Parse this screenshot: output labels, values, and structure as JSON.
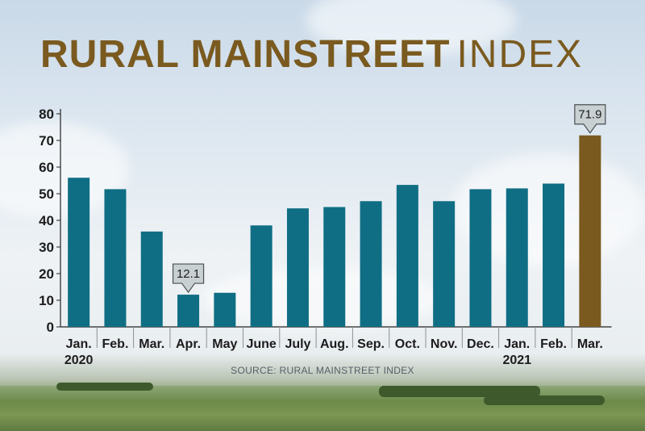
{
  "title": {
    "bold": "RURAL MAINSTREET",
    "light": "INDEX"
  },
  "source": "SOURCE: RURAL MAINSTREET INDEX",
  "colors": {
    "bar": "#0f6e84",
    "highlight_bar": "#7a5a1f",
    "title": "#7a5a1f",
    "callout_fill": "#c9d0d2"
  },
  "chart_data": {
    "type": "bar",
    "categories": [
      "Jan.",
      "Feb.",
      "Mar.",
      "Apr.",
      "May",
      "June",
      "July",
      "Aug.",
      "Sep.",
      "Oct.",
      "Nov.",
      "Dec.",
      "Jan.",
      "Feb.",
      "Mar."
    ],
    "year_labels": {
      "0": "2020",
      "12": "2021"
    },
    "values": [
      56,
      51.7,
      35.8,
      12.1,
      12.8,
      38.1,
      44.5,
      45,
      47.2,
      53.3,
      47.2,
      51.7,
      52,
      53.8,
      71.9
    ],
    "highlight_index": 14,
    "annotations": [
      {
        "index": 3,
        "text": "12.1"
      },
      {
        "index": 14,
        "text": "71.9"
      }
    ],
    "yticks": [
      0,
      10,
      20,
      30,
      40,
      50,
      60,
      70,
      80
    ],
    "ylim": [
      0,
      80
    ],
    "grid": false
  }
}
